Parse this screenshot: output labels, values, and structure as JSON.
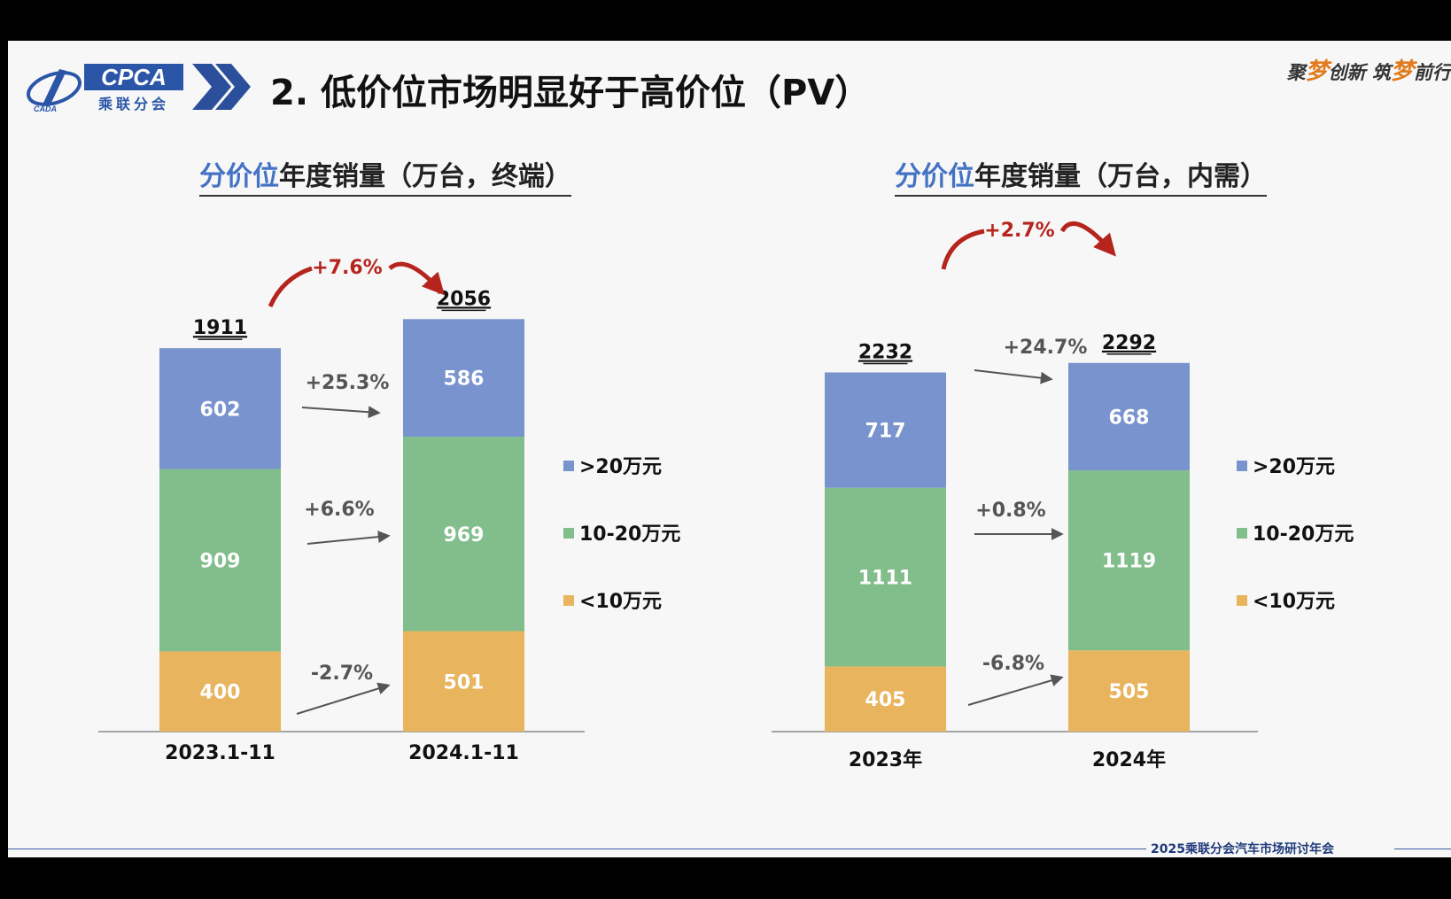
{
  "header": {
    "logo_text": "CPCA",
    "logo_sub": "乘联分会",
    "logo_small": "CADA",
    "title": "2. 低价位市场明显好于高价位（PV）",
    "slogan_a": "聚",
    "slogan_b": "梦",
    "slogan_c": "创新 筑",
    "slogan_d": "梦",
    "slogan_e": "前行"
  },
  "footer": {
    "text": "2025乘联分会汽车市场研讨年会"
  },
  "colors": {
    "high": "#7893ce",
    "mid": "#82bd8c",
    "low": "#e8b45e",
    "growth": "#b5251d",
    "accent": "#4573c4"
  },
  "charts": [
    {
      "title_hl": "分价位",
      "title_rest": "年度销量（万台，终端）"
    },
    {
      "title_hl": "分价位",
      "title_rest": "年度销量（万台，内需）"
    }
  ],
  "chart_data": [
    {
      "type": "bar",
      "stacked": true,
      "title": "分价位年度销量（万台，终端）",
      "categories": [
        "2023.1-11",
        "2024.1-11"
      ],
      "series": [
        {
          "name": "<10万元",
          "values": [
            400,
            501
          ],
          "change": "+25.3%"
        },
        {
          "name": "10-20万元",
          "values": [
            909,
            969
          ],
          "change": "+6.6%"
        },
        {
          "name": ">20万元",
          "values": [
            602,
            586
          ],
          "change": "-2.7%"
        }
      ],
      "totals": [
        1911,
        2056
      ],
      "total_change": "+7.6%",
      "ylim": [
        0,
        2500
      ],
      "legend": "right",
      "grid": false
    },
    {
      "type": "bar",
      "stacked": true,
      "title": "分价位年度销量（万台，内需）",
      "categories": [
        "2023年",
        "2024年"
      ],
      "series": [
        {
          "name": "<10万元",
          "values": [
            405,
            505
          ],
          "change": "+24.7%"
        },
        {
          "name": "10-20万元",
          "values": [
            1111,
            1119
          ],
          "change": "+0.8%"
        },
        {
          "name": ">20万元",
          "values": [
            717,
            668
          ],
          "change": "-6.8%"
        }
      ],
      "totals": [
        2232,
        2292
      ],
      "total_change": "+2.7%",
      "ylim": [
        0,
        2500
      ],
      "legend": "right",
      "grid": false
    }
  ]
}
